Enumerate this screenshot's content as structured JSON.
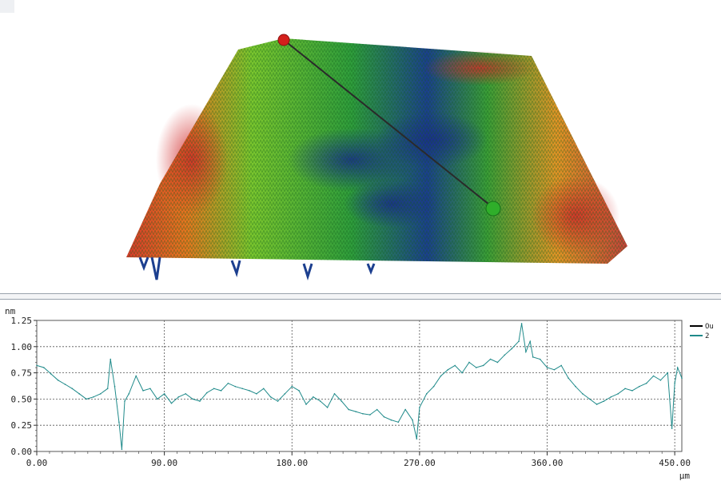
{
  "chart_data": {
    "type": "line",
    "ylabel": "nm",
    "xlabel": "µm",
    "xlim": [
      0,
      455
    ],
    "ylim": [
      0,
      1.25
    ],
    "x_ticks": [
      "0.00",
      "90.00",
      "180.00",
      "270.00",
      "360.00",
      "450.00"
    ],
    "y_ticks": [
      "1.25",
      "1.00",
      "0.75",
      "0.50",
      "0.25",
      "0.00"
    ],
    "grid": true,
    "legend_position": "right",
    "series": [
      {
        "name": "Ou",
        "color": "#000000",
        "values": []
      },
      {
        "name": "2",
        "color": "#1f8a8a",
        "x": [
          0,
          5,
          10,
          15,
          20,
          25,
          30,
          35,
          40,
          45,
          50,
          52,
          55,
          58,
          60,
          62,
          65,
          70,
          75,
          80,
          85,
          90,
          95,
          100,
          105,
          110,
          115,
          120,
          125,
          130,
          135,
          140,
          145,
          150,
          155,
          160,
          165,
          170,
          175,
          180,
          185,
          190,
          195,
          200,
          205,
          210,
          215,
          220,
          225,
          230,
          235,
          240,
          245,
          250,
          255,
          260,
          265,
          268,
          270,
          275,
          280,
          285,
          290,
          295,
          300,
          305,
          310,
          315,
          320,
          325,
          330,
          335,
          340,
          342,
          345,
          348,
          350,
          355,
          360,
          365,
          370,
          375,
          380,
          385,
          390,
          395,
          400,
          405,
          410,
          415,
          420,
          425,
          430,
          435,
          440,
          445,
          448,
          450,
          452,
          455
        ],
        "values": [
          0.82,
          0.8,
          0.74,
          0.68,
          0.64,
          0.6,
          0.55,
          0.5,
          0.52,
          0.55,
          0.6,
          0.88,
          0.62,
          0.28,
          0.02,
          0.48,
          0.55,
          0.72,
          0.58,
          0.6,
          0.5,
          0.55,
          0.46,
          0.52,
          0.55,
          0.5,
          0.48,
          0.56,
          0.6,
          0.58,
          0.65,
          0.62,
          0.6,
          0.58,
          0.55,
          0.6,
          0.52,
          0.48,
          0.55,
          0.62,
          0.58,
          0.45,
          0.52,
          0.48,
          0.42,
          0.55,
          0.48,
          0.4,
          0.38,
          0.36,
          0.35,
          0.4,
          0.33,
          0.3,
          0.28,
          0.4,
          0.3,
          0.12,
          0.42,
          0.55,
          0.62,
          0.72,
          0.78,
          0.82,
          0.75,
          0.85,
          0.8,
          0.82,
          0.88,
          0.85,
          0.92,
          0.98,
          1.05,
          1.22,
          0.95,
          1.05,
          0.9,
          0.88,
          0.8,
          0.78,
          0.82,
          0.7,
          0.62,
          0.55,
          0.5,
          0.45,
          0.48,
          0.52,
          0.55,
          0.6,
          0.58,
          0.62,
          0.65,
          0.72,
          0.68,
          0.75,
          0.22,
          0.65,
          0.8,
          0.7
        ]
      }
    ]
  }
}
